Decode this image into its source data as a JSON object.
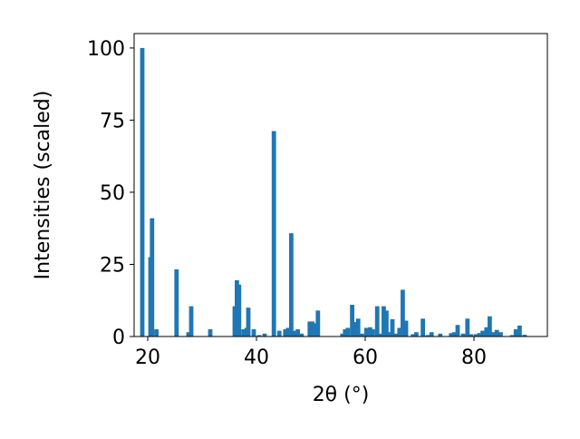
{
  "chart_data": {
    "type": "bar",
    "xlabel": "2θ (°)",
    "ylabel": "Intensities (scaled)",
    "x": [
      19.0,
      20.5,
      20.8,
      21.6,
      25.3,
      27.5,
      28.0,
      31.5,
      36.0,
      36.4,
      36.8,
      37.6,
      38.2,
      38.5,
      39.5,
      40.5,
      41.5,
      43.2,
      44.2,
      45.3,
      45.8,
      46.4,
      47.0,
      47.6,
      48.3,
      49.8,
      50.3,
      50.8,
      51.3,
      55.8,
      56.3,
      56.8,
      57.6,
      58.2,
      58.7,
      59.4,
      60.2,
      60.9,
      61.4,
      62.2,
      62.8,
      63.4,
      63.9,
      64.4,
      65.0,
      65.7,
      66.3,
      66.9,
      67.5,
      68.8,
      69.4,
      70.6,
      71.5,
      72.2,
      73.8,
      75.8,
      76.4,
      77.0,
      78.0,
      78.8,
      79.5,
      80.4,
      81.0,
      81.6,
      82.3,
      82.9,
      83.6,
      84.2,
      84.9,
      87.0,
      87.7,
      88.4,
      89.3
    ],
    "values": [
      100,
      27.5,
      41,
      2.5,
      23.3,
      1.5,
      10.5,
      2.5,
      10.5,
      19.5,
      18,
      2.5,
      3,
      10,
      2.5,
      0.5,
      1,
      71.2,
      2,
      2.5,
      3,
      35.8,
      2,
      2.5,
      1,
      5.2,
      5.2,
      4.5,
      9,
      1,
      2.5,
      3,
      11,
      5,
      6.2,
      1,
      3,
      3.2,
      2.5,
      10.5,
      1,
      10.5,
      9,
      1.5,
      6,
      1,
      3,
      16.2,
      5.5,
      0.8,
      1.5,
      6.2,
      0.5,
      1.5,
      1,
      1.2,
      1.5,
      4,
      1,
      6.2,
      0.8,
      0.8,
      1.2,
      2,
      3.2,
      7,
      1.5,
      2.3,
      1.5,
      0.5,
      2.5,
      3.8,
      0.6
    ],
    "color": "#1f77b4",
    "xlim": [
      17.5,
      93.5
    ],
    "xticks": [
      20,
      40,
      60,
      80
    ],
    "ylim": [
      0,
      105
    ],
    "yticks": [
      0,
      25,
      50,
      75,
      100
    ]
  }
}
